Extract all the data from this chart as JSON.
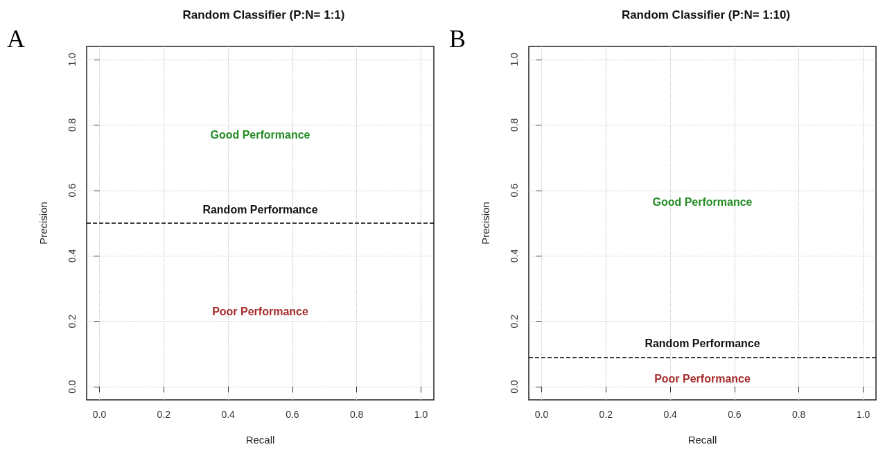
{
  "chart_data": [
    {
      "type": "line",
      "title": "Random Classifier (P:N= 1:1)",
      "xlabel": "Recall",
      "ylabel": "Precision",
      "xlim": [
        -0.04,
        1.04
      ],
      "ylim": [
        -0.04,
        1.04
      ],
      "xticks": [
        {
          "value": 0,
          "label": "0.0"
        },
        {
          "value": 0.2,
          "label": "0.2"
        },
        {
          "value": 0.4,
          "label": "0.4"
        },
        {
          "value": 0.6,
          "label": "0.6"
        },
        {
          "value": 0.8,
          "label": "0.8"
        },
        {
          "value": 1,
          "label": "1.0"
        }
      ],
      "yticks": [
        {
          "value": 0,
          "label": "0.0"
        },
        {
          "value": 0.2,
          "label": "0.2"
        },
        {
          "value": 0.4,
          "label": "0.4"
        },
        {
          "value": 0.6,
          "label": "0.6"
        },
        {
          "value": 0.8,
          "label": "0.8"
        },
        {
          "value": 1,
          "label": "1.0"
        }
      ],
      "grid": true,
      "ref_lines": [
        {
          "axis": "y",
          "value": 0.5,
          "label": "Random Performance",
          "color": "#000000",
          "line_style": "dashed"
        }
      ],
      "annotations": [
        "A",
        "Good Performance",
        "Poor Performance"
      ]
    },
    {
      "type": "line",
      "title": "Random Classifier (P:N= 1:10)",
      "xlabel": "Recall",
      "ylabel": "Precision",
      "xlim": [
        -0.04,
        1.04
      ],
      "ylim": [
        -0.04,
        1.04
      ],
      "xticks": [
        {
          "value": 0,
          "label": "0.0"
        },
        {
          "value": 0.2,
          "label": "0.2"
        },
        {
          "value": 0.4,
          "label": "0.4"
        },
        {
          "value": 0.6,
          "label": "0.6"
        },
        {
          "value": 0.8,
          "label": "0.8"
        },
        {
          "value": 1,
          "label": "1.0"
        }
      ],
      "yticks": [
        {
          "value": 0,
          "label": "0.0"
        },
        {
          "value": 0.2,
          "label": "0.2"
        },
        {
          "value": 0.4,
          "label": "0.4"
        },
        {
          "value": 0.6,
          "label": "0.6"
        },
        {
          "value": 0.8,
          "label": "0.8"
        },
        {
          "value": 1,
          "label": "1.0"
        }
      ],
      "grid": true,
      "ref_lines": [
        {
          "axis": "y",
          "value": 0.09,
          "label": "Random Performance",
          "color": "#000000",
          "line_style": "dashed"
        }
      ],
      "annotations": [
        "B",
        "Good Performance",
        "Poor Performance"
      ]
    }
  ]
}
